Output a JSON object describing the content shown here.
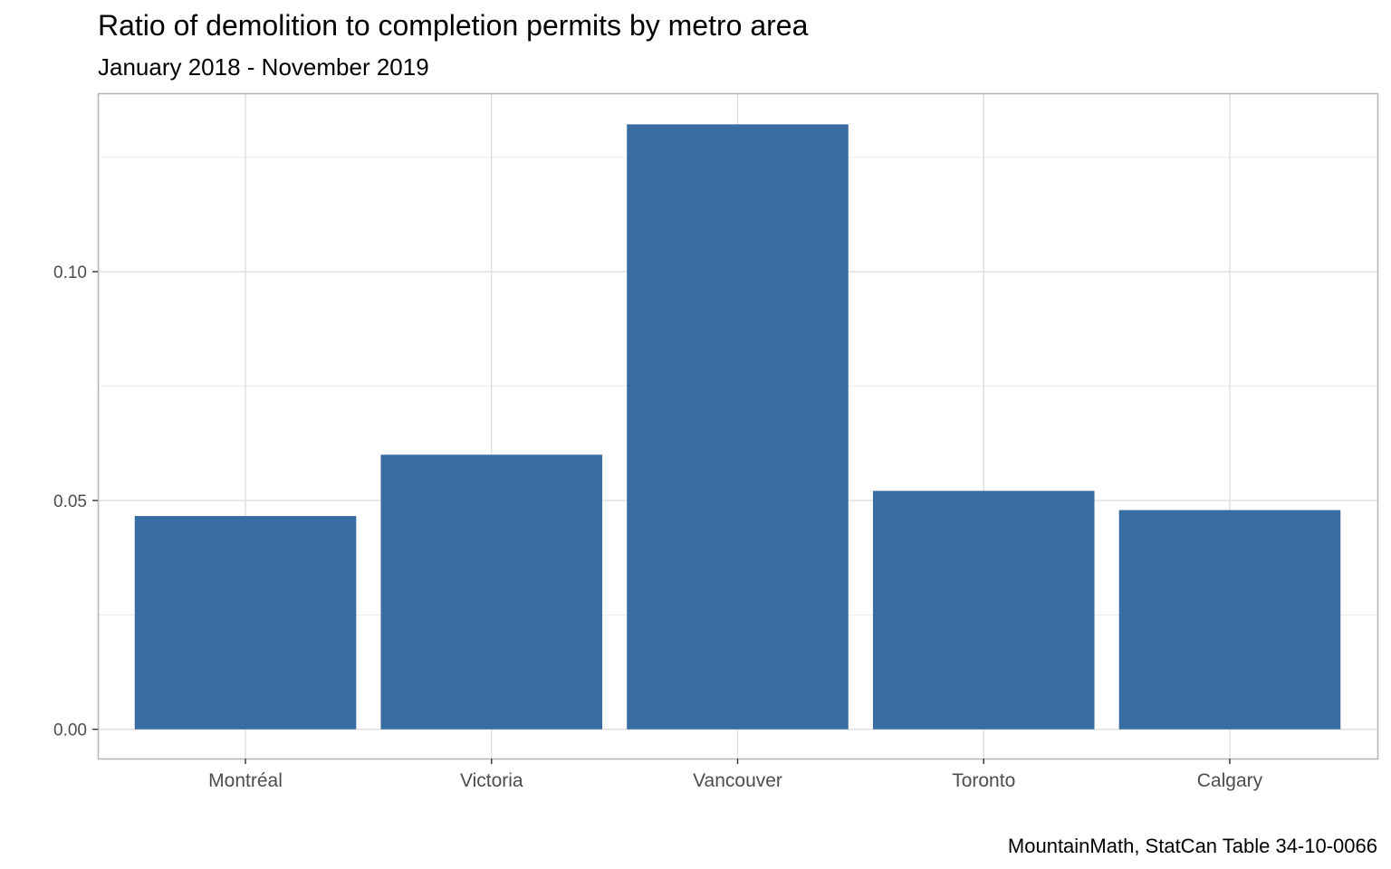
{
  "chart_data": {
    "type": "bar",
    "title": "Ratio of demolition to completion permits by metro area",
    "subtitle": "January 2018 - November 2019",
    "caption": "MountainMath, StatCan Table 34-10-0066",
    "xlabel": "",
    "ylabel": "",
    "categories": [
      "Montréal",
      "Victoria",
      "Vancouver",
      "Toronto",
      "Calgary"
    ],
    "values": [
      0.0466,
      0.06,
      0.1322,
      0.0521,
      0.0479
    ],
    "ylim": [
      -0.0064,
      0.139
    ],
    "y_ticks": [
      0.0,
      0.05,
      0.1
    ],
    "y_tick_labels": [
      "0.00",
      "0.05",
      "0.10"
    ],
    "y_minor_ticks": [
      0.025,
      0.075,
      0.125
    ],
    "grid": true,
    "bar_color": "#396CA3",
    "grid_color": "#DEDEDE",
    "panel_border_color": "#B3B3B3"
  }
}
